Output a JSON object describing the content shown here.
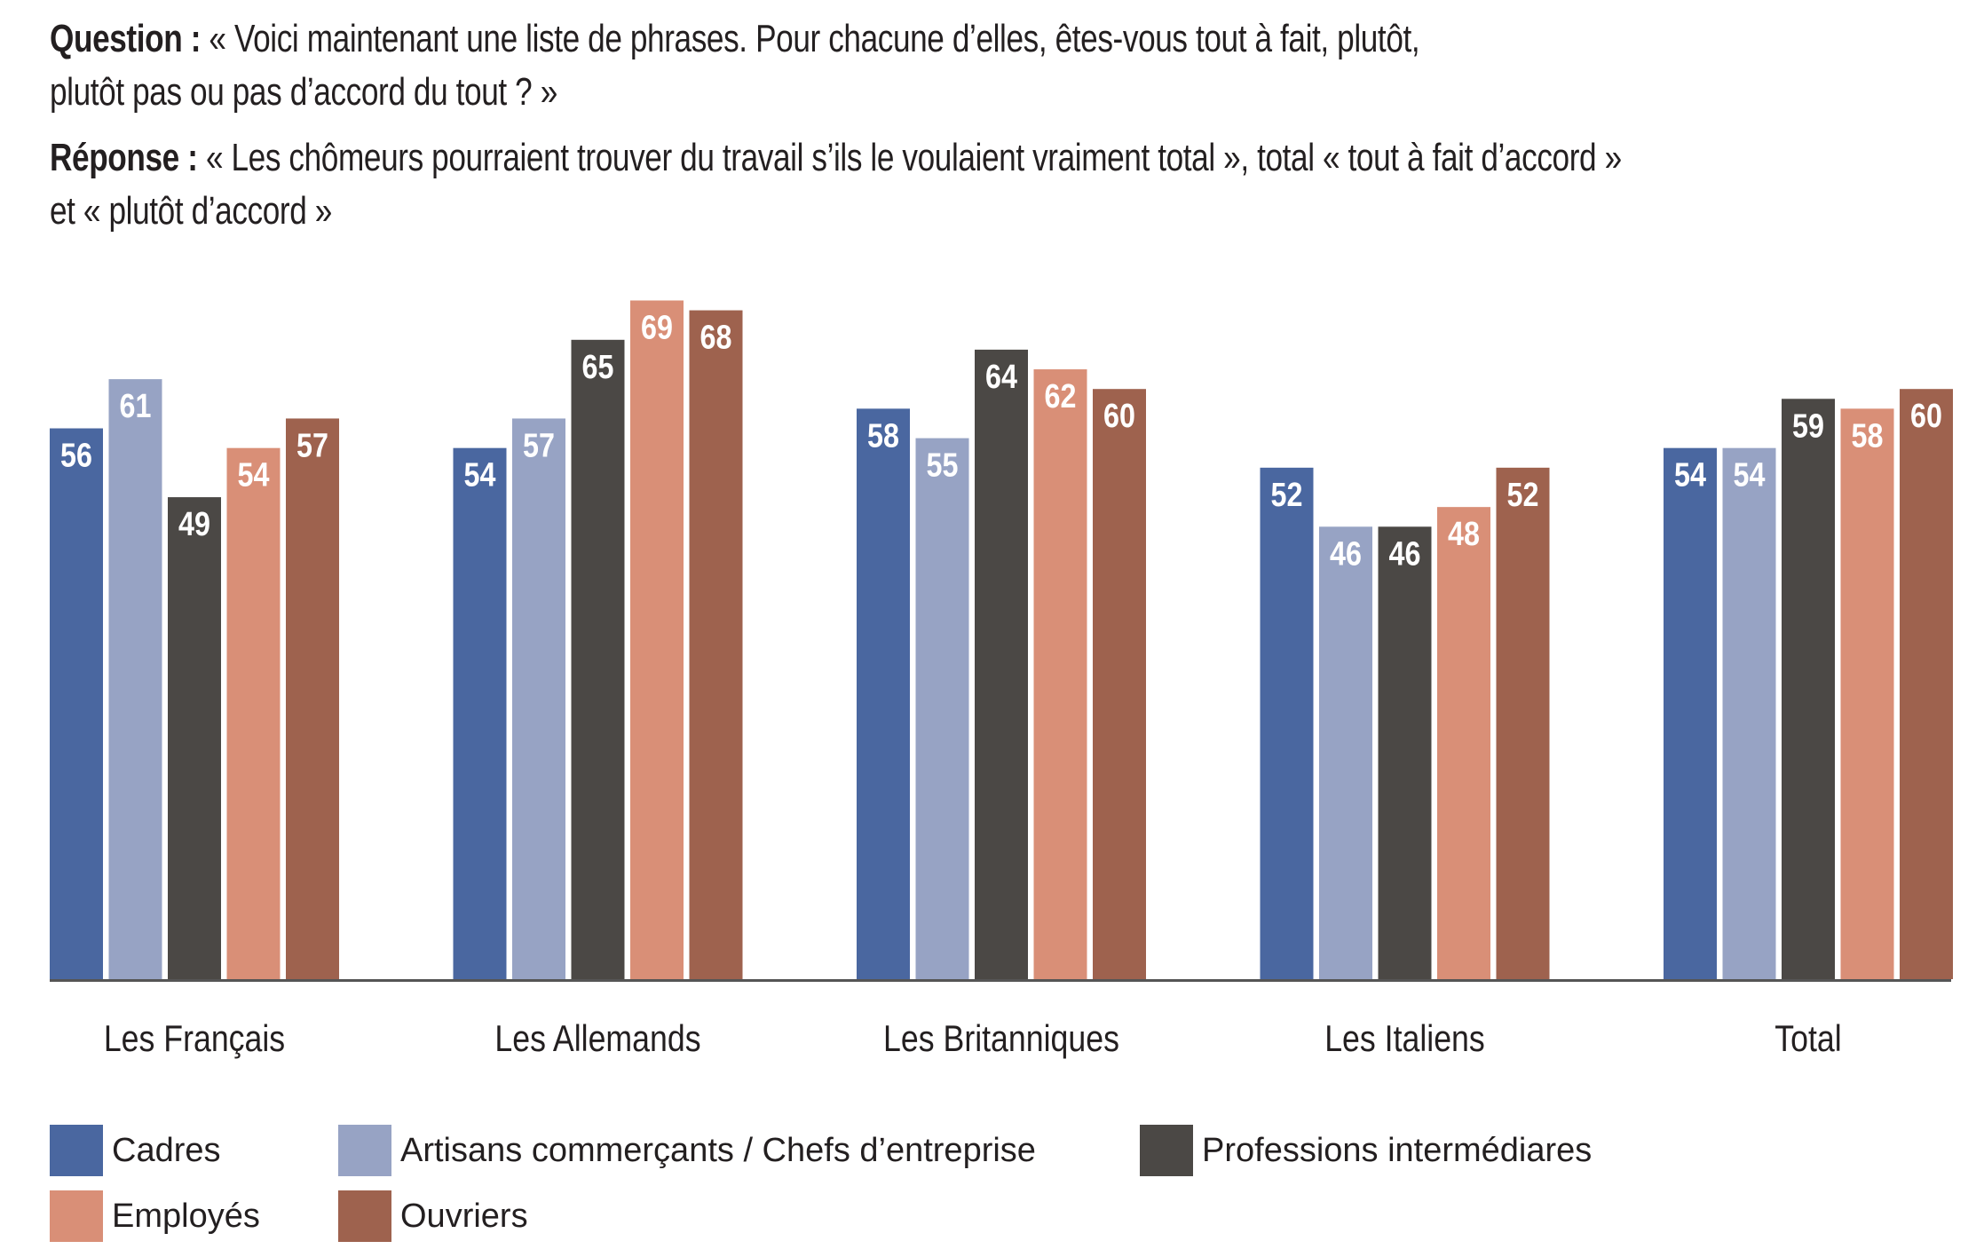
{
  "question": {
    "label": "Question :",
    "line1": " « Voici maintenant une liste de phrases. Pour chacune d’elles, êtes-vous tout à fait, plutôt,",
    "line2": "plutôt pas ou pas d’accord du tout ? »"
  },
  "response": {
    "label": "Réponse :",
    "line1": " « Les chômeurs pourraient trouver du travail s’ils le voulaient vraiment total », total « tout à fait d’accord »",
    "line2": "et « plutôt d’accord »"
  },
  "chart_data": {
    "type": "bar",
    "title": "",
    "xlabel": "",
    "ylabel": "",
    "ylim": [
      0,
      100
    ],
    "grid": false,
    "legend_placement": "bottom",
    "categories": [
      "Les Français",
      "Les Allemands",
      "Les Britanniques",
      "Les Italiens",
      "Total"
    ],
    "series": [
      {
        "name": "Cadres",
        "color": "#4a67a0",
        "values": [
          56,
          54,
          58,
          52,
          54
        ]
      },
      {
        "name": "Artisans commerçants / Chefs d’entreprise",
        "color": "#97a3c4",
        "values": [
          61,
          57,
          55,
          46,
          54
        ]
      },
      {
        "name": "Professions intermédiares",
        "color": "#4b4845",
        "values": [
          49,
          65,
          64,
          46,
          59
        ]
      },
      {
        "name": "Employés",
        "color": "#d98f77",
        "values": [
          54,
          69,
          62,
          48,
          58
        ]
      },
      {
        "name": "Ouvriers",
        "color": "#9e624e",
        "values": [
          57,
          68,
          60,
          52,
          60
        ]
      }
    ]
  }
}
